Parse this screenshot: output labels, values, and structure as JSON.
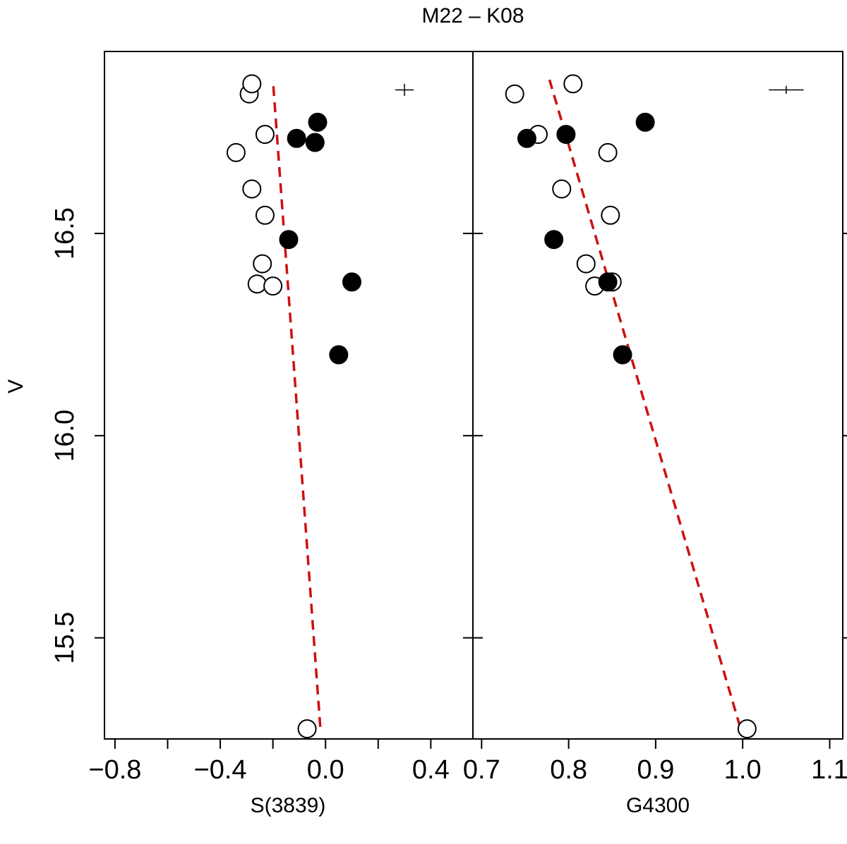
{
  "chart_data": {
    "type": "scatter",
    "title": "M22 – K08",
    "ylabel": "V",
    "ylim": [
      16.95,
      15.25
    ],
    "yticks": [
      15.5,
      16.0,
      16.5
    ],
    "ytick_labels": [
      "15.5",
      "16.0",
      "16.5"
    ],
    "panels": [
      {
        "name": "S3839",
        "xlabel": "S(3839)",
        "xlim": [
          -0.84,
          0.56
        ],
        "xticks": [
          -0.8,
          -0.6,
          -0.4,
          -0.2,
          0.0,
          0.2,
          0.4
        ],
        "xtick_labels": [
          "−0.8",
          "",
          "−0.4",
          "",
          "0.0",
          "",
          "0.4"
        ],
        "open_points": [
          {
            "x": -0.07,
            "y": 15.275
          },
          {
            "x": -0.26,
            "y": 16.375
          },
          {
            "x": -0.2,
            "y": 16.37
          },
          {
            "x": -0.24,
            "y": 16.425
          },
          {
            "x": -0.23,
            "y": 16.545
          },
          {
            "x": -0.28,
            "y": 16.61
          },
          {
            "x": -0.34,
            "y": 16.7
          },
          {
            "x": -0.23,
            "y": 16.745
          },
          {
            "x": -0.29,
            "y": 16.845
          },
          {
            "x": -0.28,
            "y": 16.87
          }
        ],
        "filled_points": [
          {
            "x": 0.05,
            "y": 16.2
          },
          {
            "x": 0.1,
            "y": 16.38
          },
          {
            "x": -0.14,
            "y": 16.485
          },
          {
            "x": -0.11,
            "y": 16.735
          },
          {
            "x": -0.04,
            "y": 16.725
          },
          {
            "x": -0.03,
            "y": 16.775
          }
        ],
        "fit_line": [
          {
            "x": -0.02,
            "y": 15.28
          },
          {
            "x": -0.2,
            "y": 16.88
          }
        ],
        "error_bar": {
          "x": 0.3,
          "y": 16.855,
          "x_err": 0.035,
          "y_err": 0.015
        }
      },
      {
        "name": "G4300",
        "xlabel": "G4300",
        "xlim": [
          0.69,
          1.115
        ],
        "xticks": [
          0.7,
          0.8,
          0.9,
          1.0,
          1.1
        ],
        "xtick_labels": [
          "0.7",
          "0.8",
          "0.9",
          "1.0",
          "1.1"
        ],
        "open_points": [
          {
            "x": 1.005,
            "y": 15.275
          },
          {
            "x": 0.83,
            "y": 16.37
          },
          {
            "x": 0.85,
            "y": 16.38
          },
          {
            "x": 0.82,
            "y": 16.425
          },
          {
            "x": 0.848,
            "y": 16.545
          },
          {
            "x": 0.792,
            "y": 16.61
          },
          {
            "x": 0.845,
            "y": 16.7
          },
          {
            "x": 0.765,
            "y": 16.745
          },
          {
            "x": 0.738,
            "y": 16.845
          },
          {
            "x": 0.805,
            "y": 16.87
          }
        ],
        "filled_points": [
          {
            "x": 0.862,
            "y": 16.2
          },
          {
            "x": 0.845,
            "y": 16.38
          },
          {
            "x": 0.783,
            "y": 16.485
          },
          {
            "x": 0.752,
            "y": 16.735
          },
          {
            "x": 0.797,
            "y": 16.745
          },
          {
            "x": 0.888,
            "y": 16.775
          }
        ],
        "fit_line": [
          {
            "x": 0.997,
            "y": 15.28
          },
          {
            "x": 0.778,
            "y": 16.88
          }
        ],
        "error_bar": {
          "x": 1.05,
          "y": 16.855,
          "x_err": 0.02,
          "y_err": 0.01
        }
      }
    ]
  },
  "colors": {
    "fit_line": "#cc1111",
    "axes": "#000000",
    "open_fill": "#ffffff",
    "filled": "#000000"
  }
}
